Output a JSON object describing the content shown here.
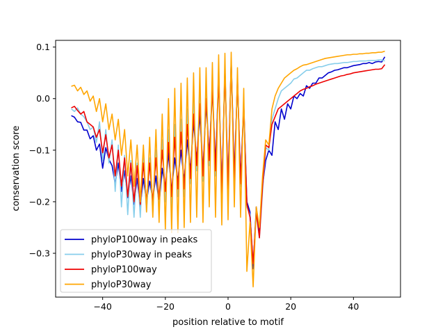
{
  "chart_data": {
    "type": "line",
    "title": "",
    "xlabel": "position relative to motif",
    "ylabel": "conservation score",
    "xlim": [
      -55,
      55
    ],
    "ylim": [
      -0.385,
      0.113
    ],
    "xticks": [
      -40,
      -20,
      0,
      20,
      40
    ],
    "xtick_labels": [
      "−40",
      "−20",
      "0",
      "20",
      "40"
    ],
    "yticks": [
      -0.3,
      -0.2,
      -0.1,
      0.0,
      0.1
    ],
    "ytick_labels": [
      "−0.3",
      "−0.2",
      "−0.1",
      "0.0",
      "0.1"
    ],
    "legend_position": "lower-left",
    "x": [
      -50,
      -49,
      -48,
      -47,
      -46,
      -45,
      -44,
      -43,
      -42,
      -41,
      -40,
      -39,
      -38,
      -37,
      -36,
      -35,
      -34,
      -33,
      -32,
      -31,
      -30,
      -29,
      -28,
      -27,
      -26,
      -25,
      -24,
      -23,
      -22,
      -21,
      -20,
      -19,
      -18,
      -17,
      -16,
      -15,
      -14,
      -13,
      -12,
      -11,
      -10,
      -9,
      -8,
      -7,
      -6,
      -5,
      -4,
      -3,
      -2,
      -1,
      0,
      1,
      2,
      3,
      4,
      5,
      6,
      7,
      8,
      9,
      10,
      11,
      12,
      13,
      14,
      15,
      16,
      17,
      18,
      19,
      20,
      21,
      22,
      23,
      24,
      25,
      26,
      27,
      28,
      29,
      30,
      31,
      32,
      33,
      34,
      35,
      36,
      37,
      38,
      39,
      40,
      41,
      42,
      43,
      44,
      45,
      46,
      47,
      48,
      49,
      50
    ],
    "series": [
      {
        "name": "phyloP100way in peaks",
        "color": "#0000cd",
        "values": [
          -0.033,
          -0.036,
          -0.045,
          -0.046,
          -0.061,
          -0.061,
          -0.078,
          -0.072,
          -0.1,
          -0.088,
          -0.135,
          -0.095,
          -0.118,
          -0.13,
          -0.165,
          -0.125,
          -0.18,
          -0.14,
          -0.192,
          -0.15,
          -0.205,
          -0.155,
          -0.21,
          -0.155,
          -0.2,
          -0.16,
          -0.195,
          -0.15,
          -0.205,
          -0.135,
          -0.175,
          -0.105,
          -0.18,
          -0.115,
          -0.16,
          -0.1,
          -0.16,
          -0.08,
          -0.14,
          -0.045,
          -0.12,
          -0.03,
          -0.14,
          -0.01,
          -0.11,
          0.02,
          -0.13,
          0.05,
          -0.18,
          0.06,
          -0.17,
          0.075,
          -0.15,
          0.035,
          -0.16,
          -0.01,
          -0.2,
          -0.22,
          -0.33,
          -0.21,
          -0.265,
          -0.17,
          -0.12,
          -0.1,
          -0.11,
          -0.045,
          -0.06,
          -0.02,
          -0.04,
          -0.01,
          -0.02,
          0.005,
          0.0,
          0.01,
          0.005,
          0.025,
          0.02,
          0.03,
          0.03,
          0.04,
          0.04,
          0.045,
          0.05,
          0.052,
          0.055,
          0.056,
          0.058,
          0.06,
          0.06,
          0.062,
          0.064,
          0.065,
          0.066,
          0.068,
          0.068,
          0.07,
          0.068,
          0.071,
          0.072,
          0.071,
          0.081
        ]
      },
      {
        "name": "phyloP30way in peaks",
        "color": "#87ceeb",
        "values": [
          -0.02,
          -0.025,
          -0.018,
          -0.03,
          -0.035,
          -0.045,
          -0.06,
          -0.055,
          -0.085,
          -0.045,
          -0.12,
          -0.06,
          -0.125,
          -0.08,
          -0.18,
          -0.09,
          -0.21,
          -0.11,
          -0.225,
          -0.12,
          -0.23,
          -0.125,
          -0.23,
          -0.115,
          -0.22,
          -0.115,
          -0.22,
          -0.1,
          -0.215,
          -0.08,
          -0.2,
          -0.06,
          -0.21,
          -0.05,
          -0.19,
          -0.04,
          -0.19,
          -0.02,
          -0.165,
          0.0,
          -0.14,
          0.02,
          -0.16,
          0.03,
          -0.13,
          0.04,
          -0.15,
          0.06,
          -0.2,
          0.06,
          -0.185,
          0.075,
          -0.17,
          0.04,
          -0.17,
          -0.02,
          -0.21,
          -0.225,
          -0.32,
          -0.225,
          -0.27,
          -0.18,
          -0.095,
          -0.1,
          -0.04,
          -0.02,
          0.0,
          0.015,
          0.02,
          0.025,
          0.03,
          0.038,
          0.04,
          0.045,
          0.05,
          0.055,
          0.055,
          0.058,
          0.06,
          0.062,
          0.062,
          0.064,
          0.066,
          0.067,
          0.068,
          0.068,
          0.069,
          0.07,
          0.07,
          0.071,
          0.072,
          0.072,
          0.073,
          0.073,
          0.073,
          0.074,
          0.074,
          0.074,
          0.075,
          0.075,
          0.073
        ]
      },
      {
        "name": "phyloP100way",
        "color": "#ee0000",
        "values": [
          -0.018,
          -0.015,
          -0.023,
          -0.03,
          -0.025,
          -0.045,
          -0.05,
          -0.055,
          -0.075,
          -0.06,
          -0.105,
          -0.07,
          -0.115,
          -0.09,
          -0.15,
          -0.1,
          -0.17,
          -0.115,
          -0.19,
          -0.125,
          -0.2,
          -0.13,
          -0.205,
          -0.125,
          -0.2,
          -0.125,
          -0.2,
          -0.115,
          -0.195,
          -0.1,
          -0.18,
          -0.085,
          -0.19,
          -0.075,
          -0.175,
          -0.065,
          -0.175,
          -0.05,
          -0.155,
          -0.03,
          -0.13,
          -0.01,
          -0.15,
          0.0,
          -0.12,
          0.02,
          -0.14,
          0.04,
          -0.185,
          0.055,
          -0.175,
          0.07,
          -0.16,
          0.04,
          -0.165,
          -0.015,
          -0.205,
          -0.23,
          -0.32,
          -0.22,
          -0.27,
          -0.17,
          -0.09,
          -0.095,
          -0.05,
          -0.035,
          -0.02,
          -0.015,
          -0.01,
          -0.005,
          0.0,
          0.005,
          0.01,
          0.015,
          0.018,
          0.02,
          0.023,
          0.025,
          0.028,
          0.03,
          0.032,
          0.034,
          0.036,
          0.038,
          0.04,
          0.042,
          0.044,
          0.045,
          0.047,
          0.048,
          0.05,
          0.051,
          0.052,
          0.053,
          0.054,
          0.055,
          0.056,
          0.057,
          0.057,
          0.058,
          0.066
        ]
      },
      {
        "name": "phyloP30way",
        "color": "#ffa500",
        "values": [
          0.024,
          0.026,
          0.015,
          0.022,
          0.008,
          0.015,
          -0.005,
          0.005,
          -0.025,
          0.0,
          -0.045,
          -0.01,
          -0.06,
          -0.03,
          -0.08,
          -0.04,
          -0.11,
          -0.06,
          -0.15,
          -0.08,
          -0.17,
          -0.09,
          -0.2,
          -0.09,
          -0.22,
          -0.075,
          -0.23,
          -0.06,
          -0.24,
          -0.03,
          -0.255,
          0.0,
          -0.26,
          0.02,
          -0.26,
          0.03,
          -0.25,
          0.04,
          -0.24,
          0.05,
          -0.23,
          0.06,
          -0.24,
          0.06,
          -0.21,
          0.07,
          -0.23,
          0.085,
          -0.245,
          0.088,
          -0.235,
          0.09,
          -0.21,
          0.06,
          -0.23,
          0.02,
          -0.335,
          -0.24,
          -0.365,
          -0.21,
          -0.25,
          -0.15,
          -0.08,
          -0.09,
          -0.02,
          0.005,
          0.02,
          0.03,
          0.04,
          0.045,
          0.05,
          0.055,
          0.058,
          0.062,
          0.065,
          0.066,
          0.068,
          0.07,
          0.072,
          0.074,
          0.076,
          0.078,
          0.079,
          0.08,
          0.081,
          0.082,
          0.083,
          0.084,
          0.085,
          0.085,
          0.086,
          0.086,
          0.087,
          0.087,
          0.088,
          0.088,
          0.089,
          0.089,
          0.09,
          0.09,
          0.092
        ]
      }
    ]
  }
}
